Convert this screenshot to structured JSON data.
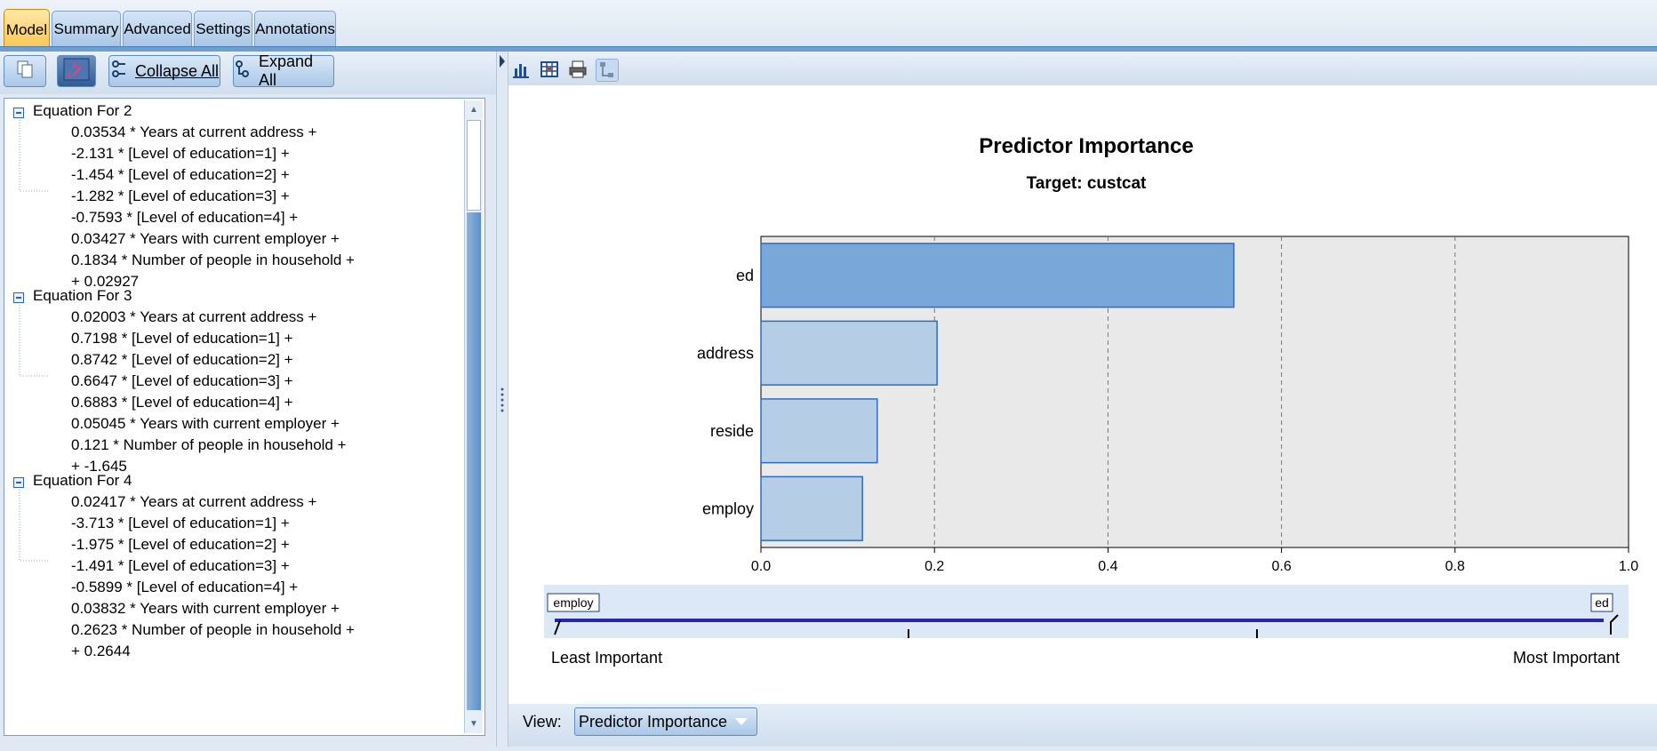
{
  "tabs": [
    {
      "label": "Model",
      "active": true
    },
    {
      "label": "Summary",
      "active": false
    },
    {
      "label": "Advanced",
      "active": false
    },
    {
      "label": "Settings",
      "active": false
    },
    {
      "label": "Annotations",
      "active": false
    }
  ],
  "left_toolbar": {
    "collapse_all_label": "Collapse All",
    "collapse_all_mnemonic": "C",
    "expand_all_label": "Expand All",
    "expand_all_mnemonic": "E",
    "icons": [
      "copy-icon",
      "visibility-icon",
      "collapse-icon",
      "expand-icon"
    ]
  },
  "equations": [
    {
      "title": "Equation For 2",
      "lines": [
        "0.03534 * Years at current address +",
        "-2.131 * [Level of education=1] +",
        "-1.454 * [Level of education=2] +",
        "-1.282 * [Level of education=3] +",
        "-0.7593 * [Level of education=4] +",
        "0.03427 * Years with current employer +",
        "0.1834 * Number of people in household +",
        "+ 0.02927"
      ]
    },
    {
      "title": "Equation For 3",
      "lines": [
        "0.02003 * Years at current address +",
        "0.7198 * [Level of education=1] +",
        "0.8742 * [Level of education=2] +",
        "0.6647 * [Level of education=3] +",
        "0.6883 * [Level of education=4] +",
        "0.05045 * Years with current employer +",
        "0.121 * Number of people in household +",
        "+ -1.645"
      ]
    },
    {
      "title": "Equation For 4",
      "lines": [
        "0.02417 * Years at current address +",
        "-3.713 * [Level of education=1] +",
        "-1.975 * [Level of education=2] +",
        "-1.491 * [Level of education=3] +",
        "-0.5899 * [Level of education=4] +",
        "0.03832 * Years with current employer +",
        "0.2623 * Number of people in household +",
        "+ 0.2644"
      ]
    }
  ],
  "right_toolbar": {
    "icons": [
      "chart-icon",
      "table-icon",
      "print-icon",
      "tree-icon"
    ]
  },
  "chart_data": {
    "type": "bar",
    "orientation": "horizontal",
    "title": "Predictor Importance",
    "subtitle": "Target: custcat",
    "categories": [
      "ed",
      "address",
      "reside",
      "employ"
    ],
    "values": [
      0.545,
      0.203,
      0.134,
      0.117
    ],
    "xlim": [
      0,
      1.0
    ],
    "x_ticks": [
      "0.0",
      "0.2",
      "0.4",
      "0.6",
      "0.8",
      "1.0"
    ],
    "grid": true,
    "highlight_category": "ed",
    "colors": {
      "highlight": "#79a7da",
      "normal": "#b6cde6",
      "edge": "#2e6cc0",
      "plot_bg": "#e9e9e9"
    },
    "importance_scale": {
      "min_label": "employ",
      "max_label": "ed",
      "least_label": "Least Important",
      "most_label": "Most Important"
    }
  },
  "view": {
    "label": "View:",
    "mnemonic": "w",
    "selected": "Predictor Importance"
  }
}
